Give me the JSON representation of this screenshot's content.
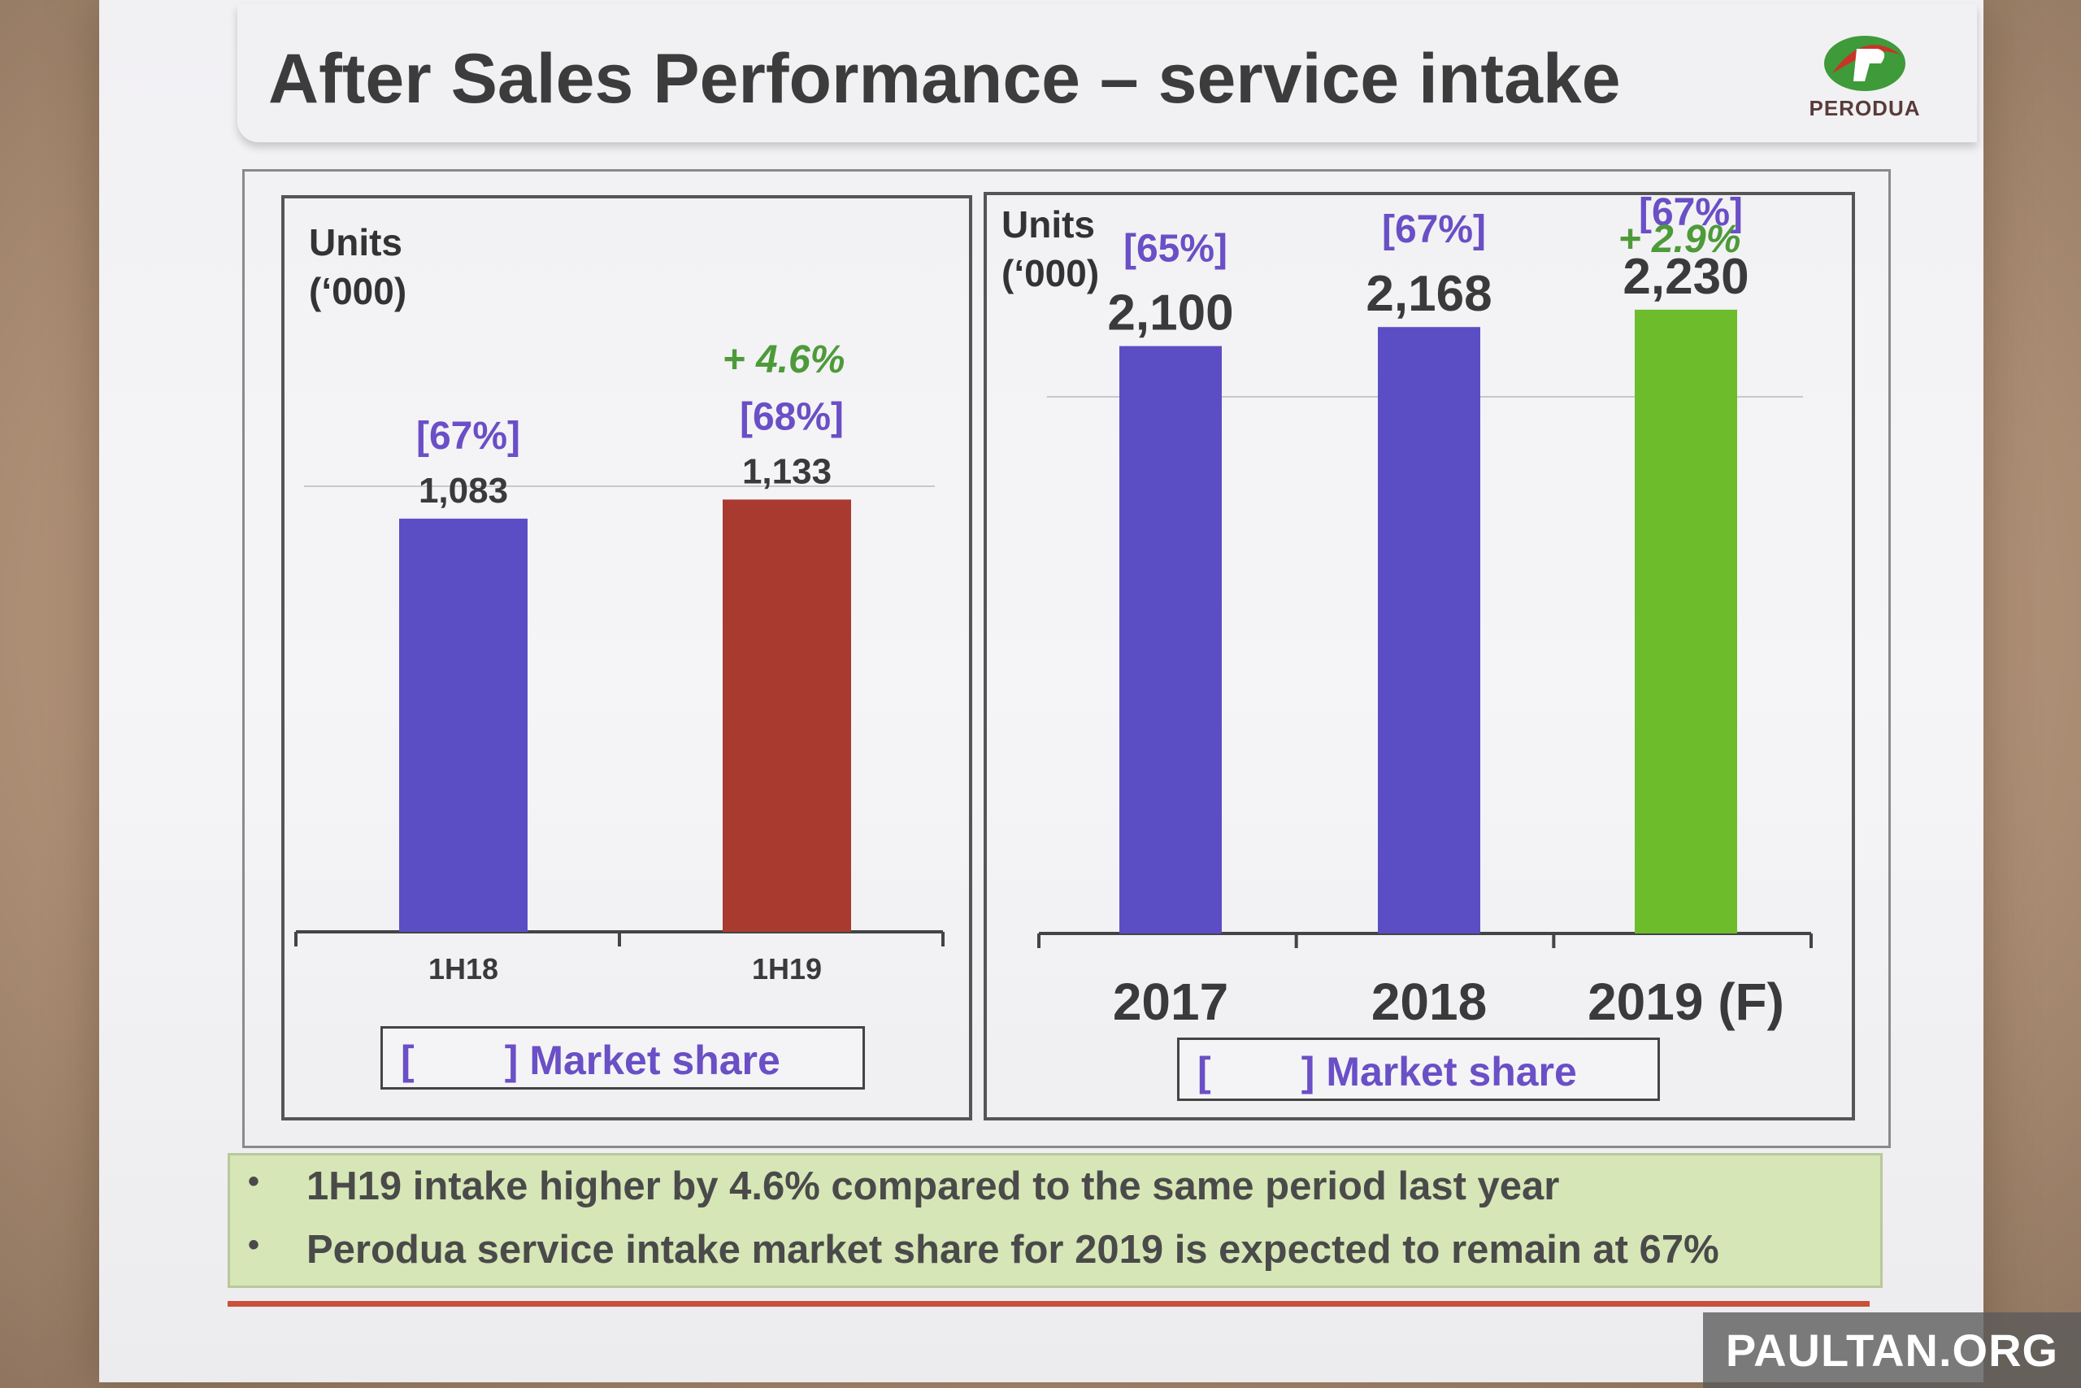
{
  "slide": {
    "title": "After Sales Performance – service intake",
    "logo_text": "PERODUA"
  },
  "chart_data": [
    {
      "type": "bar",
      "ylabel_line1": "Units",
      "ylabel_line2": "(‘000)",
      "categories": [
        "1H18",
        "1H19"
      ],
      "values": [
        1083,
        1133
      ],
      "value_labels": [
        "1,083",
        "1,133"
      ],
      "share_labels": [
        "[67%]",
        "[68%]"
      ],
      "growth_label": "+ 4.6%",
      "colors": [
        "#5b4ec4",
        "#a93a2f"
      ],
      "ylim": [
        0,
        1300
      ],
      "legend": "[        ] Market share"
    },
    {
      "type": "bar",
      "ylabel_line1": "Units",
      "ylabel_line2": "(‘000)",
      "categories": [
        "2017",
        "2018",
        "2019 (F)"
      ],
      "values": [
        2100,
        2168,
        2230
      ],
      "value_labels": [
        "2,100",
        "2,168",
        "2,230"
      ],
      "share_labels": [
        "[65%]",
        "[67%]",
        "[67%]"
      ],
      "growth_label": "+ 2.9%",
      "colors": [
        "#5b4ec4",
        "#5b4ec4",
        "#6cbc2c"
      ],
      "ylim": [
        0,
        2500
      ],
      "legend": "[        ] Market share"
    }
  ],
  "notes": [
    "1H19 intake higher by 4.6% compared to the same period last year",
    "Perodua service intake market share for 2019 is expected to remain at 67%"
  ],
  "watermark": "PAULTAN.ORG",
  "colors": {
    "share_label": "#6a4fc6",
    "growth_label": "#4e9a3a",
    "note_box": "#d6e6b6",
    "accent_line": "#c9503a"
  }
}
